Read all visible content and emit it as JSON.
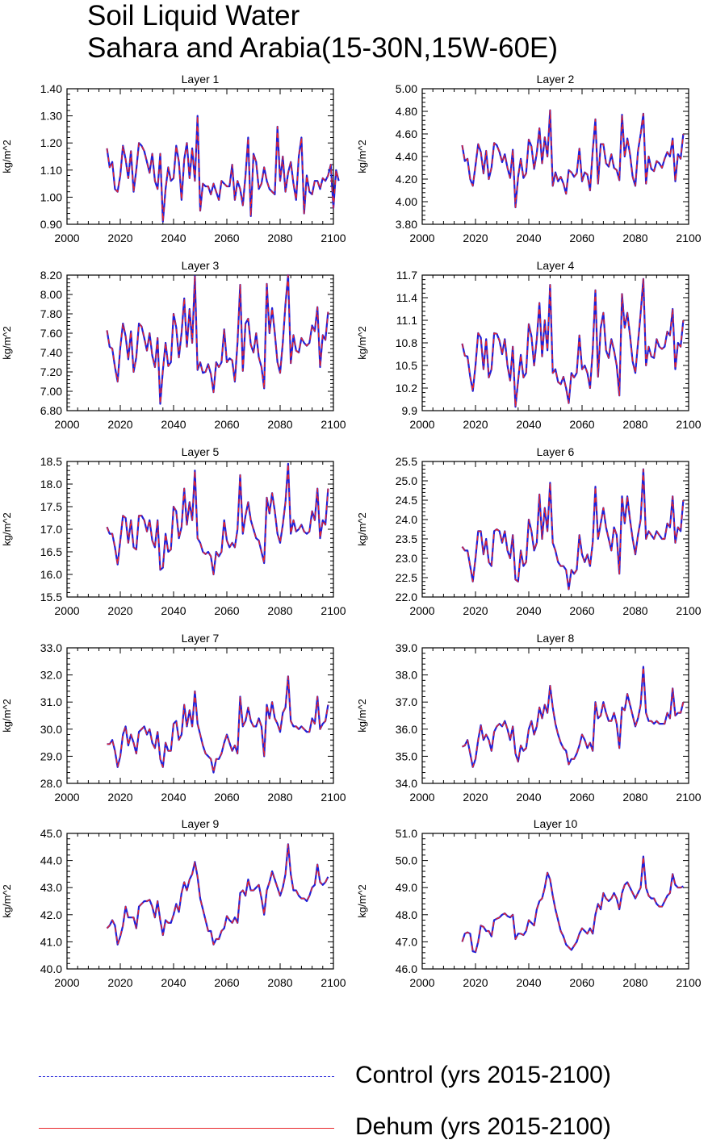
{
  "title": [
    "Soil Liquid Water",
    "Sahara and Arabia(15-30N,15W-60E)"
  ],
  "colors": {
    "control": "#1f1fd8",
    "dehum": "#e8262a"
  },
  "legend": [
    {
      "label": "Control (yrs 2015-2100)",
      "style": "dashed",
      "color": "#1f1fd8"
    },
    {
      "label": "Dehum (yrs 2015-2100)",
      "style": "solid",
      "color": "#e8262a"
    }
  ],
  "chart_data": [
    {
      "type": "line",
      "title": "Layer 1",
      "ylabel": "kg/m^2",
      "xlim": [
        2000,
        2100
      ],
      "xticks": [
        2000,
        2020,
        2040,
        2060,
        2080,
        2100
      ],
      "ylim": [
        0.9,
        1.4
      ],
      "yticks": [
        "0.90",
        "1.00",
        "1.10",
        "1.20",
        "1.30",
        "1.40"
      ],
      "x_start": 2015,
      "values": [
        1.18,
        1.11,
        1.13,
        1.03,
        1.02,
        1.08,
        1.19,
        1.14,
        1.07,
        1.17,
        1.02,
        1.1,
        1.2,
        1.19,
        1.17,
        1.13,
        1.09,
        1.16,
        1.06,
        1.03,
        1.16,
        0.91,
        1.03,
        1.11,
        1.06,
        1.07,
        1.19,
        1.13,
        0.99,
        1.14,
        1.2,
        1.07,
        1.18,
        1.06,
        1.3,
        0.95,
        1.05,
        1.04,
        1.04,
        1.01,
        1.05,
        1.02,
        0.99,
        1.06,
        1.05,
        1.04,
        1.04,
        1.12,
        0.99,
        1.06,
        1.03,
        0.97,
        1.08,
        1.22,
        0.93,
        1.16,
        1.13,
        1.03,
        1.05,
        1.11,
        1.06,
        1.03,
        1.02,
        1.01,
        1.26,
        1.06,
        1.15,
        1.02,
        1.09,
        1.13,
        1.05,
        0.99,
        1.15,
        1.22,
        0.94,
        1.08,
        1.02,
        1.01,
        1.06,
        1.06,
        1.03,
        1.07,
        1.06,
        1.08,
        1.12,
        0.96,
        1.1,
        1.06
      ]
    },
    {
      "type": "line",
      "title": "Layer 2",
      "ylabel": "kg/m^2",
      "xlim": [
        2000,
        2100
      ],
      "xticks": [
        2000,
        2020,
        2040,
        2060,
        2080,
        2100
      ],
      "ylim": [
        3.8,
        5.0
      ],
      "yticks": [
        "3.80",
        "4.00",
        "4.20",
        "4.40",
        "4.60",
        "4.80",
        "5.00"
      ],
      "x_start": 2015,
      "values": [
        4.5,
        4.36,
        4.38,
        4.2,
        4.14,
        4.32,
        4.51,
        4.44,
        4.25,
        4.45,
        4.2,
        4.3,
        4.52,
        4.5,
        4.44,
        4.35,
        4.42,
        4.3,
        4.21,
        4.46,
        3.95,
        4.22,
        4.38,
        4.21,
        4.25,
        4.55,
        4.49,
        4.29,
        4.43,
        4.65,
        4.34,
        4.57,
        4.4,
        4.81,
        4.14,
        4.26,
        4.18,
        4.22,
        4.16,
        4.07,
        4.28,
        4.26,
        4.22,
        4.25,
        4.47,
        4.18,
        4.26,
        4.24,
        4.1,
        4.45,
        4.73,
        4.16,
        4.51,
        4.51,
        4.34,
        4.31,
        4.42,
        4.3,
        4.28,
        4.19,
        4.77,
        4.4,
        4.56,
        4.42,
        4.22,
        4.14,
        4.45,
        4.6,
        4.78,
        4.16,
        4.4,
        4.29,
        4.27,
        4.36,
        4.34,
        4.3,
        4.38,
        4.44,
        4.4,
        4.56,
        4.18,
        4.42,
        4.38,
        4.6
      ]
    },
    {
      "type": "line",
      "title": "Layer 3",
      "ylabel": "kg/m^2",
      "xlim": [
        2000,
        2100
      ],
      "xticks": [
        2000,
        2020,
        2040,
        2060,
        2080,
        2100
      ],
      "ylim": [
        6.8,
        8.2
      ],
      "yticks": [
        "6.80",
        "7.00",
        "7.20",
        "7.40",
        "7.60",
        "7.80",
        "8.00",
        "8.20"
      ],
      "x_start": 2015,
      "values": [
        7.63,
        7.46,
        7.44,
        7.25,
        7.1,
        7.45,
        7.7,
        7.57,
        7.33,
        7.62,
        7.2,
        7.35,
        7.7,
        7.67,
        7.55,
        7.42,
        7.6,
        7.37,
        7.25,
        7.55,
        6.87,
        7.22,
        7.5,
        7.26,
        7.3,
        7.8,
        7.66,
        7.35,
        7.6,
        7.96,
        7.46,
        7.85,
        7.5,
        8.19,
        7.22,
        7.3,
        7.19,
        7.2,
        7.28,
        7.18,
        6.99,
        7.3,
        7.25,
        7.3,
        7.64,
        7.3,
        7.34,
        7.32,
        7.1,
        7.5,
        8.1,
        7.21,
        7.7,
        7.75,
        7.48,
        7.4,
        7.6,
        7.35,
        7.25,
        7.03,
        8.11,
        7.6,
        7.86,
        7.6,
        7.3,
        7.19,
        7.5,
        7.9,
        8.2,
        7.29,
        7.58,
        7.42,
        7.4,
        7.55,
        7.5,
        7.47,
        7.5,
        7.68,
        7.62,
        7.87,
        7.25,
        7.58,
        7.53,
        7.82
      ]
    },
    {
      "type": "line",
      "title": "Layer 4",
      "ylabel": "kg/m^2",
      "xlim": [
        2000,
        2100
      ],
      "xticks": [
        2000,
        2020,
        2040,
        2060,
        2080,
        2100
      ],
      "ylim": [
        9.9,
        11.7
      ],
      "yticks": [
        "9.9",
        "10.2",
        "10.5",
        "10.8",
        "11.1",
        "11.4",
        "11.7"
      ],
      "x_start": 2015,
      "values": [
        10.79,
        10.63,
        10.62,
        10.35,
        10.16,
        10.5,
        10.93,
        10.87,
        10.45,
        10.85,
        10.34,
        10.45,
        10.93,
        10.92,
        10.83,
        10.65,
        10.85,
        10.5,
        10.3,
        10.75,
        9.95,
        10.3,
        10.64,
        10.34,
        10.4,
        11.05,
        10.89,
        10.5,
        10.85,
        11.33,
        10.62,
        11.1,
        10.7,
        11.57,
        10.4,
        10.45,
        10.28,
        10.25,
        10.35,
        10.2,
        10.0,
        10.4,
        10.34,
        10.4,
        10.9,
        10.45,
        10.5,
        10.4,
        10.2,
        10.7,
        11.5,
        10.35,
        11.0,
        11.2,
        10.7,
        10.6,
        10.85,
        10.7,
        10.5,
        10.1,
        11.45,
        11.0,
        11.2,
        10.9,
        10.55,
        10.4,
        10.8,
        11.2,
        11.65,
        10.5,
        10.75,
        10.62,
        10.6,
        10.85,
        10.75,
        10.72,
        10.75,
        10.95,
        10.9,
        11.25,
        10.45,
        10.8,
        10.75,
        11.1
      ]
    },
    {
      "type": "line",
      "title": "Layer 5",
      "ylabel": "kg/m^2",
      "xlim": [
        2000,
        2100
      ],
      "xticks": [
        2000,
        2020,
        2040,
        2060,
        2080,
        2100
      ],
      "ylim": [
        15.5,
        18.5
      ],
      "yticks": [
        "15.5",
        "16.0",
        "16.5",
        "17.0",
        "17.5",
        "18.0",
        "18.5"
      ],
      "x_start": 2015,
      "values": [
        17.05,
        16.9,
        16.9,
        16.6,
        16.22,
        16.75,
        17.3,
        17.25,
        16.7,
        17.2,
        16.6,
        16.55,
        17.3,
        17.3,
        17.2,
        16.95,
        17.2,
        16.75,
        16.6,
        17.2,
        16.1,
        16.15,
        16.9,
        16.5,
        16.55,
        17.5,
        17.4,
        16.8,
        17.05,
        17.9,
        17.1,
        17.6,
        17.2,
        18.3,
        16.8,
        16.7,
        16.5,
        16.45,
        16.5,
        16.4,
        16.0,
        16.5,
        16.4,
        16.5,
        17.2,
        16.75,
        16.6,
        16.7,
        16.6,
        17.0,
        18.2,
        16.9,
        17.3,
        17.6,
        17.2,
        17.0,
        16.8,
        16.75,
        16.5,
        16.25,
        17.7,
        17.35,
        17.8,
        17.4,
        16.9,
        16.7,
        17.1,
        17.6,
        18.45,
        16.9,
        17.2,
        16.95,
        17.0,
        17.1,
        16.95,
        16.9,
        16.95,
        17.4,
        17.2,
        17.9,
        16.8,
        17.2,
        17.1,
        17.9
      ]
    },
    {
      "type": "line",
      "title": "Layer 6",
      "ylabel": "kg/m^2",
      "xlim": [
        2000,
        2100
      ],
      "xticks": [
        2000,
        2020,
        2040,
        2060,
        2080,
        2100
      ],
      "ylim": [
        22.0,
        25.5
      ],
      "yticks": [
        "22.0",
        "22.5",
        "23.0",
        "23.5",
        "24.0",
        "24.5",
        "25.0",
        "25.5"
      ],
      "x_start": 2015,
      "values": [
        23.3,
        23.2,
        23.2,
        22.8,
        22.4,
        23.0,
        23.7,
        23.7,
        23.1,
        23.5,
        22.9,
        22.8,
        23.7,
        23.75,
        23.7,
        23.4,
        23.7,
        23.2,
        23.0,
        23.6,
        22.45,
        22.4,
        23.2,
        22.8,
        22.9,
        24.0,
        23.7,
        23.2,
        23.4,
        24.65,
        23.5,
        24.3,
        23.7,
        24.95,
        23.4,
        23.2,
        22.9,
        22.8,
        22.8,
        22.7,
        22.2,
        22.7,
        22.6,
        22.7,
        23.6,
        23.1,
        22.9,
        23.1,
        22.8,
        23.4,
        24.85,
        23.5,
        23.9,
        24.3,
        23.8,
        23.5,
        23.2,
        23.8,
        23.6,
        22.6,
        24.6,
        23.9,
        24.6,
        24.0,
        23.5,
        23.1,
        23.6,
        24.0,
        25.3,
        23.5,
        23.7,
        23.6,
        23.5,
        23.7,
        23.6,
        23.5,
        23.5,
        23.9,
        23.8,
        24.6,
        23.4,
        23.8,
        23.7,
        24.5
      ]
    },
    {
      "type": "line",
      "title": "Layer 7",
      "ylabel": "kg/m^2",
      "xlim": [
        2000,
        2100
      ],
      "xticks": [
        2000,
        2020,
        2040,
        2060,
        2080,
        2100
      ],
      "ylim": [
        28.0,
        33.0
      ],
      "yticks": [
        "28.0",
        "29.0",
        "30.0",
        "31.0",
        "32.0",
        "33.0"
      ],
      "x_start": 2015,
      "values": [
        29.45,
        29.45,
        29.6,
        29.2,
        28.6,
        29.0,
        29.8,
        30.1,
        29.4,
        29.8,
        29.5,
        29.1,
        29.9,
        30.0,
        30.1,
        29.8,
        30.0,
        29.5,
        29.3,
        29.9,
        28.9,
        28.6,
        29.5,
        29.2,
        29.2,
        30.2,
        30.3,
        29.6,
        29.8,
        30.9,
        30.1,
        30.7,
        30.1,
        31.4,
        30.2,
        29.8,
        29.4,
        29.1,
        29.0,
        28.9,
        28.4,
        28.9,
        28.9,
        29.1,
        29.5,
        29.8,
        29.5,
        29.2,
        29.4,
        29.1,
        31.2,
        30.1,
        30.3,
        30.8,
        30.3,
        30.1,
        30.1,
        30.4,
        30.1,
        29.0,
        30.9,
        30.4,
        31.0,
        30.4,
        30.2,
        29.9,
        30.6,
        30.8,
        31.95,
        30.3,
        30.1,
        30.1,
        30.0,
        30.1,
        30.0,
        29.9,
        29.9,
        30.4,
        30.2,
        31.2,
        30.0,
        30.2,
        30.3,
        30.9
      ]
    },
    {
      "type": "line",
      "title": "Layer 8",
      "ylabel": "kg/m^2",
      "xlim": [
        2000,
        2100
      ],
      "xticks": [
        2000,
        2020,
        2040,
        2060,
        2080,
        2100
      ],
      "ylim": [
        34.0,
        39.0
      ],
      "yticks": [
        "34.0",
        "35.0",
        "36.0",
        "37.0",
        "38.0",
        "39.0"
      ],
      "x_start": 2015,
      "values": [
        35.35,
        35.4,
        35.6,
        35.1,
        34.6,
        34.9,
        35.6,
        36.15,
        35.6,
        35.8,
        35.6,
        35.2,
        35.9,
        36.1,
        36.2,
        36.1,
        36.3,
        36.0,
        35.6,
        36.1,
        35.1,
        34.8,
        35.4,
        35.2,
        35.3,
        36.0,
        36.3,
        35.8,
        36.1,
        36.8,
        36.4,
        36.9,
        36.6,
        37.6,
        36.8,
        36.2,
        35.8,
        35.5,
        35.3,
        35.2,
        34.7,
        34.9,
        34.9,
        35.1,
        35.4,
        35.8,
        35.6,
        35.3,
        35.5,
        35.2,
        37.0,
        36.4,
        36.5,
        37.0,
        36.6,
        36.3,
        36.3,
        36.6,
        36.2,
        35.3,
        36.8,
        36.7,
        37.3,
        36.9,
        36.5,
        36.1,
        36.4,
        36.9,
        38.3,
        36.6,
        36.3,
        36.3,
        36.2,
        36.3,
        36.2,
        36.2,
        36.2,
        36.6,
        36.4,
        37.5,
        36.5,
        36.6,
        36.6,
        37.0
      ]
    },
    {
      "type": "line",
      "title": "Layer 9",
      "ylabel": "kg/m^2",
      "xlim": [
        2000,
        2100
      ],
      "xticks": [
        2000,
        2020,
        2040,
        2060,
        2080,
        2100
      ],
      "ylim": [
        40.0,
        45.0
      ],
      "yticks": [
        "40.0",
        "41.0",
        "42.0",
        "43.0",
        "44.0",
        "45.0"
      ],
      "x_start": 2015,
      "values": [
        41.5,
        41.6,
        41.8,
        41.6,
        40.9,
        41.2,
        41.6,
        42.3,
        41.9,
        41.9,
        41.9,
        41.5,
        42.3,
        42.4,
        42.5,
        42.5,
        42.55,
        42.3,
        41.9,
        42.5,
        41.8,
        41.25,
        41.8,
        41.7,
        41.7,
        42.0,
        42.4,
        42.1,
        42.8,
        43.2,
        42.9,
        43.3,
        43.5,
        43.95,
        43.4,
        42.6,
        42.2,
        41.8,
        41.4,
        41.4,
        40.9,
        41.1,
        41.1,
        41.4,
        41.5,
        41.95,
        41.8,
        41.7,
        41.9,
        41.7,
        42.8,
        42.9,
        42.7,
        43.3,
        42.9,
        42.9,
        43.0,
        43.1,
        42.6,
        42.0,
        42.9,
        43.2,
        43.6,
        43.3,
        43.0,
        42.7,
        43.0,
        43.5,
        44.6,
        43.5,
        42.9,
        42.9,
        42.7,
        42.6,
        42.6,
        42.5,
        42.7,
        43.0,
        43.1,
        43.85,
        43.2,
        43.1,
        43.2,
        43.4
      ]
    },
    {
      "type": "line",
      "title": "Layer 10",
      "ylabel": "kg/m^2",
      "xlim": [
        2000,
        2100
      ],
      "xticks": [
        2000,
        2020,
        2040,
        2060,
        2080,
        2100
      ],
      "ylim": [
        46.0,
        51.0
      ],
      "yticks": [
        "46.0",
        "47.0",
        "48.0",
        "49.0",
        "50.0",
        "51.0"
      ],
      "x_start": 2015,
      "values": [
        47.0,
        47.3,
        47.35,
        47.3,
        46.65,
        46.62,
        47.0,
        47.6,
        47.55,
        47.4,
        47.4,
        47.2,
        47.8,
        47.85,
        47.9,
        48.0,
        48.05,
        47.95,
        47.9,
        48.0,
        47.1,
        47.3,
        47.3,
        47.25,
        47.4,
        47.8,
        47.7,
        47.6,
        48.2,
        48.5,
        48.6,
        49.0,
        49.55,
        49.3,
        48.7,
        48.2,
        47.8,
        47.4,
        47.2,
        46.9,
        46.8,
        46.7,
        46.85,
        47.0,
        47.3,
        47.5,
        47.4,
        47.3,
        47.5,
        47.3,
        48.0,
        48.4,
        48.2,
        48.8,
        48.6,
        48.5,
        48.6,
        48.8,
        48.6,
        48.2,
        48.8,
        49.1,
        49.2,
        49.0,
        48.8,
        48.6,
        48.8,
        49.0,
        50.15,
        49.0,
        48.7,
        48.6,
        48.6,
        48.4,
        48.3,
        48.3,
        48.5,
        48.7,
        48.8,
        49.5,
        49.1,
        49.0,
        49.0,
        49.05
      ]
    }
  ]
}
